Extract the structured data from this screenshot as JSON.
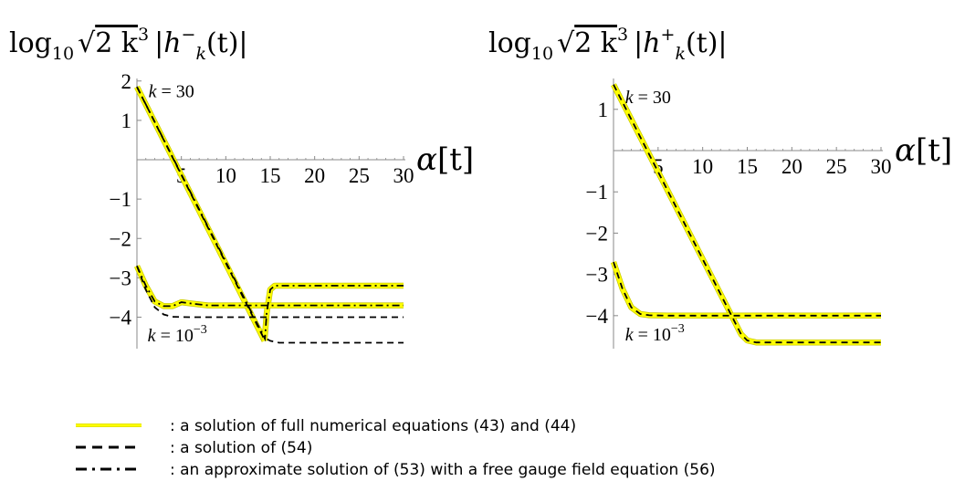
{
  "chart_data": [
    {
      "type": "line",
      "title": "log10 √(2 k^3) |h^-_k(t)|",
      "title_parts": {
        "log": "log",
        "base": "10",
        "expr": "2 k",
        "pow": "3",
        "h": "h",
        "sign": "−",
        "sub": "k",
        "arg": "(t)|",
        "bar": "|"
      },
      "xlabel": "α[t]",
      "xlabel_parts": {
        "alpha": "α",
        "bracket": "[t]"
      },
      "xlim": [
        0,
        30
      ],
      "ylim": [
        -4.8,
        2.2
      ],
      "xticks": [
        {
          "v": 5,
          "label": "5"
        },
        {
          "v": 10,
          "label": "10"
        },
        {
          "v": 15,
          "label": "15"
        },
        {
          "v": 20,
          "label": "20"
        },
        {
          "v": 25,
          "label": "25"
        },
        {
          "v": 30,
          "label": "30"
        }
      ],
      "yticks": [
        {
          "v": 2,
          "label": "2"
        },
        {
          "v": 1,
          "label": "1"
        },
        {
          "v": -1,
          "label": "−1"
        },
        {
          "v": -2,
          "label": "−2"
        },
        {
          "v": -3,
          "label": "−3"
        },
        {
          "v": -4,
          "label": "−4"
        }
      ],
      "annotations": [
        {
          "id": "k-high",
          "text_italic": "k",
          "text_rest": " = 30",
          "x": 1.3,
          "y": 1.75
        },
        {
          "id": "k-low",
          "text_italic": "k",
          "text_rest": " = 10",
          "exp": "−3",
          "x": 1.2,
          "y": -4.45
        }
      ],
      "series": [
        {
          "id": "full-high",
          "style": "full",
          "points": [
            [
              0,
              1.85
            ],
            [
              14.35,
              -4.6
            ]
          ]
        },
        {
          "id": "full-high-late",
          "style": "full",
          "points": [
            [
              14.35,
              -4.6
            ],
            [
              14.6,
              -3.9
            ],
            [
              15.0,
              -3.3
            ],
            [
              15.5,
              -3.2
            ],
            [
              20,
              -3.2
            ],
            [
              30,
              -3.2
            ]
          ]
        },
        {
          "id": "dash-high",
          "style": "dashed",
          "points": [
            [
              0,
              1.85
            ],
            [
              14.2,
              -4.5
            ],
            [
              15,
              -4.6
            ],
            [
              16,
              -4.65
            ],
            [
              30,
              -4.65
            ]
          ]
        },
        {
          "id": "approx-high",
          "style": "dashdot",
          "points": [
            [
              0,
              1.85
            ],
            [
              14.4,
              -4.55
            ],
            [
              14.6,
              -3.9
            ],
            [
              15.0,
              -3.3
            ],
            [
              15.5,
              -3.2
            ],
            [
              30,
              -3.2
            ]
          ]
        },
        {
          "id": "full-low",
          "style": "full",
          "points": [
            [
              0,
              -2.7
            ],
            [
              1,
              -3.2
            ],
            [
              2,
              -3.6
            ],
            [
              3,
              -3.72
            ],
            [
              4,
              -3.72
            ],
            [
              5,
              -3.62
            ],
            [
              6,
              -3.65
            ],
            [
              8,
              -3.7
            ],
            [
              30,
              -3.7
            ]
          ]
        },
        {
          "id": "dash-low",
          "style": "dashed",
          "points": [
            [
              0,
              -2.7
            ],
            [
              1,
              -3.3
            ],
            [
              2,
              -3.75
            ],
            [
              3,
              -3.93
            ],
            [
              4,
              -3.99
            ],
            [
              6,
              -4.0
            ],
            [
              30,
              -4.0
            ]
          ]
        },
        {
          "id": "approx-low",
          "style": "dashdot",
          "points": [
            [
              0,
              -2.7
            ],
            [
              1,
              -3.2
            ],
            [
              2,
              -3.6
            ],
            [
              3,
              -3.72
            ],
            [
              4,
              -3.72
            ],
            [
              5,
              -3.62
            ],
            [
              6,
              -3.65
            ],
            [
              8,
              -3.7
            ],
            [
              30,
              -3.7
            ]
          ]
        }
      ]
    },
    {
      "type": "line",
      "title": "log10 √(2 k^3) |h^+_k(t)|",
      "title_parts": {
        "log": "log",
        "base": "10",
        "expr": "2 k",
        "pow": "3",
        "h": "h",
        "sign": "+",
        "sub": "k",
        "arg": "(t)|",
        "bar": "|"
      },
      "xlabel": "α[t]",
      "xlabel_parts": {
        "alpha": "α",
        "bracket": "[t]"
      },
      "xlim": [
        0,
        30
      ],
      "ylim": [
        -4.8,
        1.7
      ],
      "xticks": [
        {
          "v": 5,
          "label": "5"
        },
        {
          "v": 10,
          "label": "10"
        },
        {
          "v": 15,
          "label": "15"
        },
        {
          "v": 20,
          "label": "20"
        },
        {
          "v": 25,
          "label": "25"
        },
        {
          "v": 30,
          "label": "30"
        }
      ],
      "yticks": [
        {
          "v": 1,
          "label": "1"
        },
        {
          "v": -1,
          "label": "−1"
        },
        {
          "v": -2,
          "label": "−2"
        },
        {
          "v": -3,
          "label": "−3"
        },
        {
          "v": -4,
          "label": "−4"
        }
      ],
      "annotations": [
        {
          "id": "k-high",
          "text_italic": "k",
          "text_rest": " = 30",
          "x": 1.3,
          "y": 1.3
        },
        {
          "id": "k-low",
          "text_italic": "k",
          "text_rest": " = 10",
          "exp": "−3",
          "x": 1.3,
          "y": -4.45
        }
      ],
      "series": [
        {
          "id": "full-high",
          "style": "full",
          "points": [
            [
              0,
              1.6
            ],
            [
              14.3,
              -4.45
            ],
            [
              15,
              -4.6
            ],
            [
              16,
              -4.65
            ],
            [
              30,
              -4.65
            ]
          ]
        },
        {
          "id": "dash-high",
          "style": "dashed",
          "points": [
            [
              0,
              1.6
            ],
            [
              14.3,
              -4.45
            ],
            [
              15,
              -4.6
            ],
            [
              16,
              -4.65
            ],
            [
              30,
              -4.65
            ]
          ]
        },
        {
          "id": "full-low",
          "style": "full",
          "points": [
            [
              0,
              -2.7
            ],
            [
              1,
              -3.35
            ],
            [
              2,
              -3.8
            ],
            [
              3,
              -3.96
            ],
            [
              4,
              -3.99
            ],
            [
              6,
              -4.0
            ],
            [
              30,
              -4.0
            ]
          ]
        },
        {
          "id": "dash-low",
          "style": "dashed",
          "points": [
            [
              0,
              -2.7
            ],
            [
              1,
              -3.35
            ],
            [
              2,
              -3.8
            ],
            [
              3,
              -3.96
            ],
            [
              4,
              -3.99
            ],
            [
              6,
              -4.0
            ],
            [
              30,
              -4.0
            ]
          ]
        }
      ]
    }
  ],
  "legend": [
    {
      "style": "full",
      "text": ": a solution of full numerical equations (43) and (44)"
    },
    {
      "style": "dashed",
      "text": ": a solution of (54)"
    },
    {
      "style": "dashdot",
      "text": ": an approximate solution of (53) with a free gauge field equation (56)"
    }
  ],
  "colors": {
    "full": "#ffff00",
    "full_outline": "#c8c800",
    "dashed": "#000000",
    "dashdot": "#000000",
    "axis": "#888888"
  }
}
